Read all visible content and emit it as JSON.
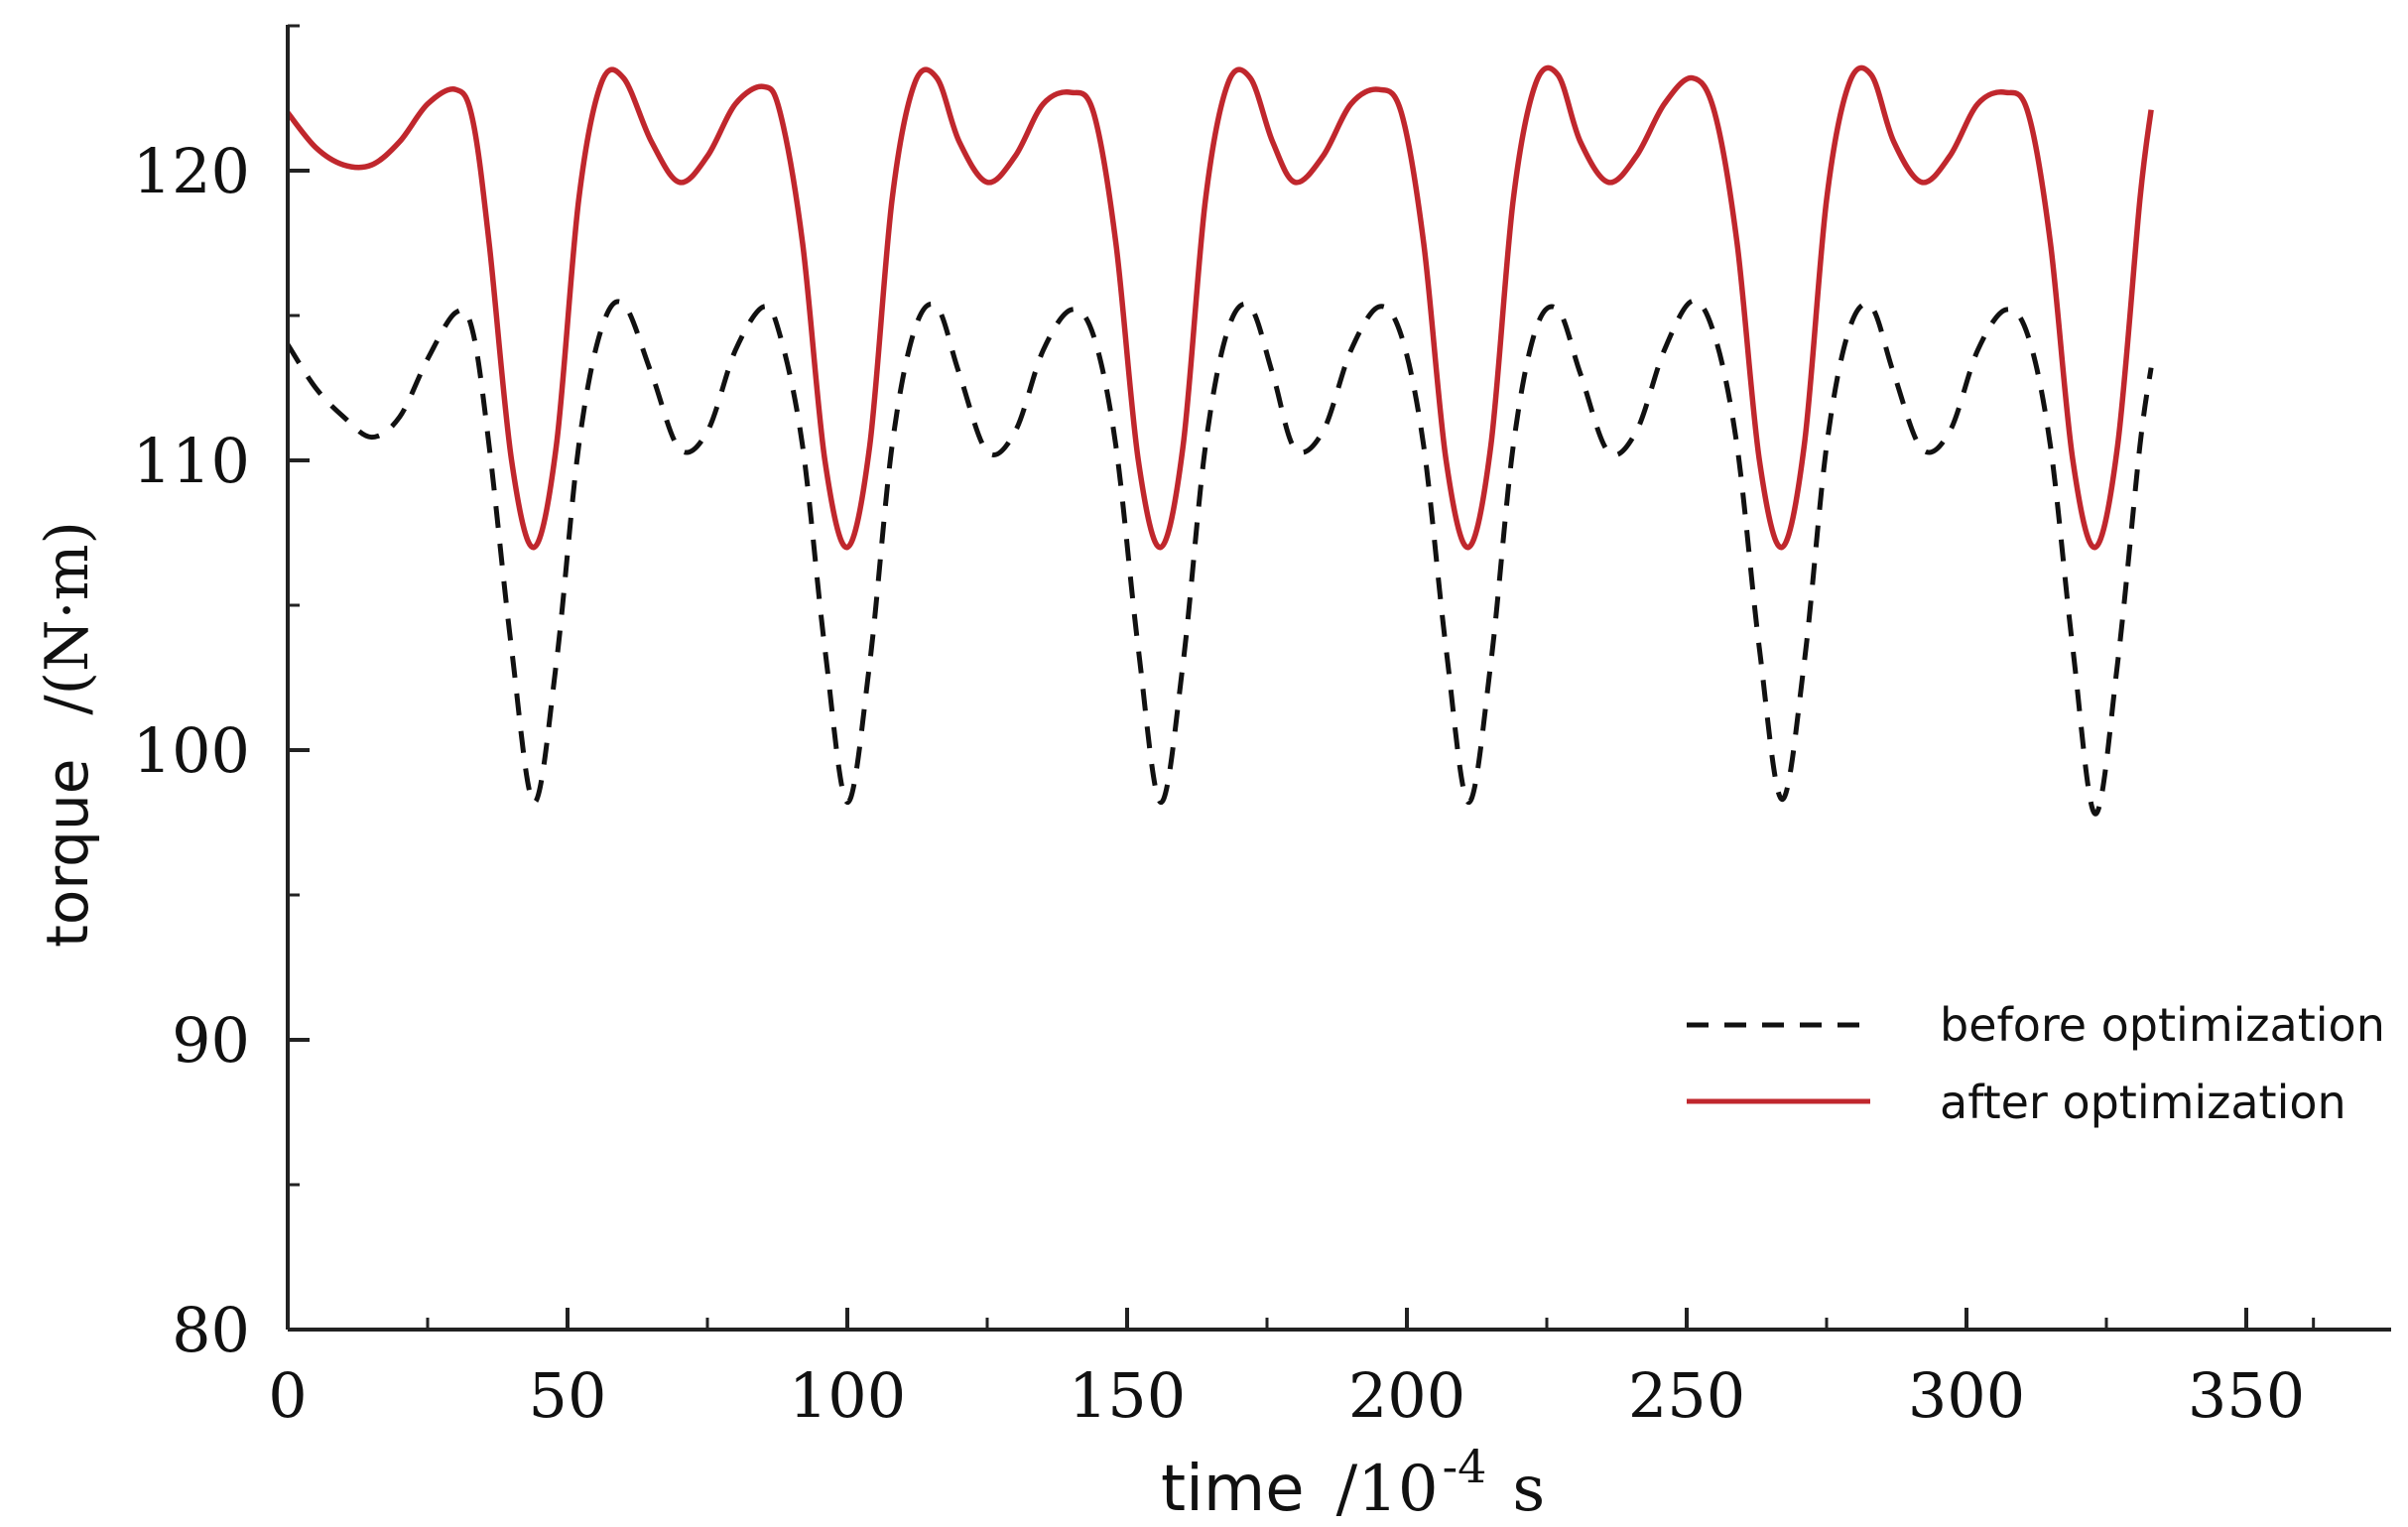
{
  "chart_data": {
    "type": "line",
    "title": "",
    "xlabel": "time  /10⁻⁴ s",
    "xlabel_parts": {
      "word": "time",
      "unit_prefix": "/10",
      "exponent": "-4",
      "unit_suffix": "s"
    },
    "ylabel": "torque  /(N·m)",
    "ylabel_parts": {
      "word": "torque",
      "unit": "/(N·m)"
    },
    "xlim": [
      0,
      370
    ],
    "ylim": [
      80,
      125
    ],
    "x_ticks": [
      0,
      50,
      100,
      150,
      200,
      250,
      300,
      350
    ],
    "x_tick_labels": [
      "0",
      "50",
      "100",
      "150",
      "200",
      "250",
      "300",
      "350"
    ],
    "x_minor_ticks": [
      25,
      75,
      125,
      175,
      225,
      275,
      325,
      362
    ],
    "y_ticks": [
      80,
      90,
      100,
      110,
      120
    ],
    "y_tick_labels": [
      "80",
      "90",
      "100",
      "110",
      "120"
    ],
    "y_minor_ticks": [
      85,
      95,
      105,
      115,
      125
    ],
    "grid": false,
    "legend_position": "right",
    "series": [
      {
        "name": "before optimization",
        "style": "dashed",
        "color": "#111111",
        "x": [
          0,
          5,
          10,
          15,
          20,
          25,
          30,
          33,
          36,
          40,
          44,
          48,
          52,
          56,
          60,
          65,
          70,
          75,
          80,
          85,
          88,
          92,
          96,
          100,
          104,
          108,
          112,
          116,
          120,
          125,
          130,
          135,
          140,
          144,
          148,
          152,
          156,
          160,
          164,
          168,
          172,
          176,
          180,
          185,
          190,
          195,
          199,
          203,
          207,
          211,
          215,
          219,
          223,
          227,
          231,
          236,
          241,
          246,
          251,
          255,
          259,
          263,
          267,
          271,
          275,
          279,
          283,
          287,
          292,
          297,
          302,
          307,
          311,
          315,
          319,
          323,
          327,
          331,
          333
        ],
        "y": [
          114,
          112.5,
          111.5,
          110.8,
          111.5,
          113.5,
          115.1,
          114.5,
          110.5,
          103.5,
          98.2,
          103,
          110.5,
          114.5,
          115.4,
          113,
          110.4,
          111,
          113.8,
          115.3,
          114.3,
          110.5,
          103.5,
          98.2,
          103,
          110.5,
          114.5,
          115.3,
          113,
          110.3,
          111,
          113.8,
          115.2,
          114.3,
          110.5,
          103.5,
          98.2,
          103,
          110.5,
          114.5,
          115.3,
          113,
          110.4,
          111,
          113.8,
          115.3,
          114.3,
          110.5,
          103.5,
          98.2,
          103,
          110.5,
          114.5,
          115.2,
          113,
          110.3,
          111,
          113.8,
          115.5,
          114.3,
          110.5,
          103.5,
          98.3,
          103,
          110.5,
          114.5,
          115.3,
          113,
          110.4,
          111,
          113.8,
          115.2,
          114.3,
          110.5,
          103.5,
          97.8,
          103,
          110.5,
          113.2
        ]
      },
      {
        "name": "after optimization",
        "style": "solid",
        "color": "#c0272d",
        "x": [
          0,
          5,
          10,
          15,
          20,
          25,
          30,
          33,
          36,
          40,
          44,
          48,
          52,
          56,
          60,
          65,
          70,
          75,
          80,
          85,
          88,
          92,
          96,
          100,
          104,
          108,
          112,
          116,
          120,
          125,
          130,
          135,
          140,
          144,
          148,
          152,
          156,
          160,
          164,
          168,
          172,
          176,
          180,
          185,
          190,
          195,
          199,
          203,
          207,
          211,
          215,
          219,
          223,
          227,
          231,
          236,
          241,
          246,
          251,
          255,
          259,
          263,
          267,
          271,
          275,
          279,
          283,
          287,
          292,
          297,
          302,
          307,
          311,
          315,
          319,
          323,
          327,
          331,
          333
        ],
        "y": [
          122,
          120.8,
          120.2,
          120.2,
          121,
          122.3,
          122.8,
          121.8,
          117.5,
          110,
          107,
          110.5,
          119,
          123,
          123.2,
          121,
          119.6,
          120.5,
          122.3,
          122.9,
          122,
          117.5,
          110,
          107,
          110.5,
          119,
          123,
          123.2,
          121,
          119.6,
          120.5,
          122.3,
          122.7,
          122,
          117.5,
          110,
          107,
          110.5,
          119,
          123,
          123.2,
          121,
          119.6,
          120.5,
          122.3,
          122.8,
          122,
          117.5,
          110,
          107,
          110.5,
          119,
          123,
          123.3,
          121,
          119.6,
          120.5,
          122.3,
          123.2,
          122,
          117.5,
          110,
          107,
          110.5,
          119,
          123,
          123.3,
          121,
          119.6,
          120.5,
          122.3,
          122.7,
          122,
          117.5,
          110,
          107,
          110.5,
          119,
          122.1
        ]
      }
    ]
  }
}
